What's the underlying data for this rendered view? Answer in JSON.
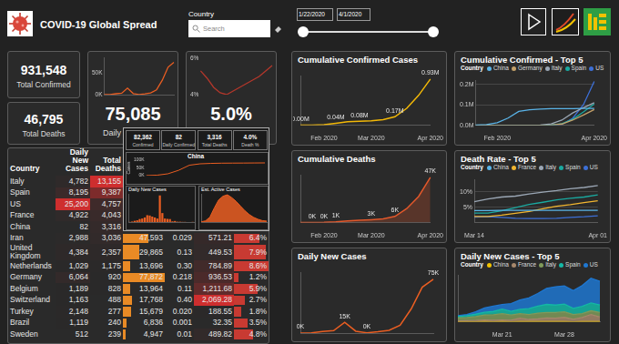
{
  "header": {
    "title": "COVID-19 Global Spread",
    "slicer_label": "Country",
    "search_placeholder": "Search",
    "date_from": "1/22/2020",
    "date_to": "4/1/2020"
  },
  "cards": [
    {
      "value": "931,548",
      "label": "Total Confirmed"
    },
    {
      "value": "46,795",
      "label": "Total Deaths"
    },
    {
      "value": "75,085",
      "label": "Daily"
    },
    {
      "value": "5.0%"
    }
  ],
  "tooltip": {
    "stats": [
      {
        "value": "82,362",
        "label": "Confirmed"
      },
      {
        "value": "82",
        "label": "Daily Confirmed"
      },
      {
        "value": "3,316",
        "label": "Total Deaths"
      },
      {
        "value": "4.0%",
        "label": "Death %"
      }
    ]
  },
  "table": {
    "header": [
      "Country",
      "Daily New Cases",
      "Total Deaths"
    ],
    "rows": [
      [
        "Italy",
        "4,782",
        "13,155"
      ],
      [
        "Spain",
        "8,195",
        "9,387"
      ],
      [
        "US",
        "25,200",
        "4,757"
      ],
      [
        "France",
        "4,922",
        "4,043"
      ],
      [
        "China",
        "82",
        "3,316"
      ],
      [
        "Iran",
        "2,988",
        "3,036",
        "47,593",
        "0.029",
        "571.21",
        "6.4%"
      ],
      [
        "United Kingdom",
        "4,384",
        "2,357",
        "29,865",
        "0.13",
        "449.53",
        "7.9%"
      ],
      [
        "Netherlands",
        "1,029",
        "1,175",
        "13,696",
        "0.30",
        "784.89",
        "8.6%"
      ],
      [
        "Germany",
        "6,064",
        "920",
        "77,872",
        "0.218",
        "936.53",
        "1.2%"
      ],
      [
        "Belgium",
        "1,189",
        "828",
        "13,964",
        "0.11",
        "1,211.68",
        "5.9%"
      ],
      [
        "Switzerland",
        "1,163",
        "488",
        "17,768",
        "0.40",
        "2,069.28",
        "2.7%"
      ],
      [
        "Turkey",
        "2,148",
        "277",
        "15,679",
        "0.020",
        "188.55",
        "1.8%"
      ],
      [
        "Brazil",
        "1,119",
        "240",
        "6,836",
        "0.001",
        "32.35",
        "3.5%"
      ],
      [
        "Sweden",
        "512",
        "239",
        "4,947",
        "0.01",
        "489.82",
        "4.8%"
      ]
    ]
  },
  "chart_data": [
    {
      "type": "line",
      "color": "#ea5e22",
      "categories": [
        null,
        null,
        null,
        null,
        null,
        null,
        null,
        null,
        null,
        null,
        null,
        null,
        null
      ],
      "values": [
        0.0,
        0.4,
        2.1,
        3.4,
        15.1,
        2.6,
        0.4,
        1.8,
        3.9,
        10.9,
        33.6,
        64.0,
        75.1
      ],
      "ylim": [
        0,
        85
      ],
      "yticks": [
        {
          "value": 0,
          "label": "0K"
        },
        {
          "value": 50,
          "label": "50K"
        }
      ],
      "tick_labels": "y",
      "grid": false
    },
    {
      "type": "line",
      "color": "#b3372b",
      "categories": [
        null,
        null,
        null,
        null,
        null,
        null,
        null,
        null,
        null,
        null,
        null,
        null
      ],
      "values": [
        5.3,
        4.9,
        4.4,
        4.1,
        4.0,
        4.2,
        4.4,
        4.6,
        4.8,
        5.0,
        5.3,
        5.6
      ],
      "ylim": [
        4,
        6
      ],
      "yticks": [
        {
          "value": 4,
          "label": "4%"
        },
        {
          "value": 6,
          "label": "6%"
        }
      ],
      "tick_labels": "y",
      "grid": false
    },
    {
      "type": "line",
      "title": "China",
      "y_label": "Cases",
      "color": "#ea5e22",
      "categories": [
        null,
        null,
        null,
        null,
        null,
        null,
        null,
        null,
        null,
        null,
        null,
        null
      ],
      "values": [
        0.5,
        2.9,
        11.8,
        34.5,
        67.5,
        76.4,
        79.2,
        80.6,
        81.0,
        81.4,
        81.9,
        82.4
      ],
      "ylim": [
        0,
        100
      ],
      "yticks": [
        {
          "value": 0,
          "label": "0K"
        },
        {
          "value": 50,
          "label": "50K"
        },
        {
          "value": 100,
          "label": "100K"
        }
      ],
      "tick_labels": "y",
      "grid": false
    },
    {
      "type": "bar",
      "title": "Daily New Cases",
      "color": "#ea5e22",
      "categories": [
        null,
        null,
        null,
        null,
        null,
        null,
        null,
        null,
        null,
        null,
        null,
        null,
        null,
        null,
        null,
        null,
        null,
        null,
        null,
        null,
        null,
        null,
        null,
        null,
        null,
        null
      ],
      "values": [
        0.1,
        0.3,
        0.7,
        1.0,
        1.7,
        2.0,
        2.6,
        3.9,
        3.7,
        3.1,
        2.6,
        2.0,
        15.1,
        5.1,
        2.0,
        1.8,
        1.7,
        0.4,
        0.6,
        0.2,
        0.2,
        0.1,
        0.1,
        0.0,
        0.0,
        0.1
      ],
      "ylim": [
        0,
        16
      ],
      "tick_labels": false,
      "grid": false
    },
    {
      "type": "area",
      "title": "Est. Active Cases",
      "color": "#ea5e22",
      "categories": [
        null,
        null,
        null,
        null,
        null,
        null,
        null,
        null,
        null,
        null,
        null,
        null,
        null,
        null,
        null,
        null
      ],
      "values": [
        0.5,
        2.6,
        10.5,
        29.8,
        47.0,
        55.0,
        58.0,
        52.0,
        44.0,
        34.0,
        24.0,
        16.0,
        10.0,
        6.0,
        3.0,
        2.0
      ],
      "ylim": [
        0,
        60
      ],
      "tick_labels": false,
      "grid": false
    },
    {
      "type": "line",
      "title": "Cumulative Confirmed Cases",
      "color": "#f2b807",
      "categories": [
        null,
        null,
        "Feb 2020",
        null,
        null,
        null,
        "Mar 2020",
        null,
        null,
        null,
        null,
        "Apr 2020"
      ],
      "values": [
        0.0006,
        0.003,
        0.012,
        0.04,
        0.069,
        0.08,
        0.088,
        0.11,
        0.17,
        0.34,
        0.6,
        0.93
      ],
      "value_labels": [
        "0.00M",
        null,
        null,
        "0.04M",
        null,
        "0.08M",
        null,
        null,
        "0.17M",
        null,
        null,
        "0.93M"
      ],
      "data_labels": true,
      "ylim": [
        0,
        1
      ],
      "tick_labels": "x",
      "grid": false
    },
    {
      "type": "line",
      "title": "Cumulative Confirmed - Top 5",
      "legend_title": "Country",
      "legend": "top",
      "categories": [
        null,
        null,
        "Feb 2020",
        null,
        null,
        null,
        null,
        null,
        null,
        null,
        null,
        "Apr 2020"
      ],
      "series": [
        {
          "name": "China",
          "color": "#5ab4e8",
          "values": [
            0.001,
            0.003,
            0.012,
            0.035,
            0.068,
            0.076,
            0.079,
            0.081,
            0.081,
            0.081,
            0.082,
            0.082
          ]
        },
        {
          "name": "Germany",
          "color": "#c4a16a",
          "values": [
            0,
            0,
            0,
            0,
            0,
            0,
            0,
            0.001,
            0.006,
            0.025,
            0.05,
            0.077
          ]
        },
        {
          "name": "Italy",
          "color": "#9ba7b5",
          "values": [
            0,
            0,
            0,
            0,
            0,
            0,
            0.001,
            0.007,
            0.025,
            0.06,
            0.086,
            0.11
          ]
        },
        {
          "name": "Spain",
          "color": "#1aa9a0",
          "values": [
            0,
            0,
            0,
            0,
            0,
            0,
            0,
            0.001,
            0.008,
            0.029,
            0.065,
            0.104
          ]
        },
        {
          "name": "US",
          "color": "#3d6fd6",
          "values": [
            0,
            0,
            0,
            0,
            0,
            0,
            0,
            0.001,
            0.004,
            0.034,
            0.101,
            0.214
          ]
        }
      ],
      "ylim": [
        0,
        0.22
      ],
      "yticks": [
        {
          "value": 0,
          "label": "0.0M"
        },
        {
          "value": 0.1,
          "label": "0.1M"
        },
        {
          "value": 0.2,
          "label": "0.2M"
        }
      ],
      "grid": true
    },
    {
      "type": "area",
      "title": "Cumulative Deaths",
      "color": "#e2582b",
      "categories": [
        null,
        null,
        "Feb 2020",
        null,
        null,
        null,
        "Mar 2020",
        null,
        null,
        null,
        null,
        "Apr 2020"
      ],
      "values": [
        0.02,
        0.08,
        0.26,
        0.81,
        1.67,
        2.46,
        3.0,
        3.81,
        6.44,
        14.6,
        27.2,
        47.2
      ],
      "value_labels": [
        null,
        "0K",
        "0K",
        "1K",
        null,
        null,
        "3K",
        null,
        "6K",
        null,
        null,
        "47K"
      ],
      "data_labels": true,
      "ylim": [
        0,
        50
      ],
      "tick_labels": "x",
      "grid": false
    },
    {
      "type": "line",
      "title": "Death Rate - Top 5",
      "legend_title": "Country",
      "legend": "top",
      "categories": [
        "Mar 14",
        null,
        null,
        null,
        null,
        null,
        null,
        null,
        null,
        "Apr 01"
      ],
      "series": [
        {
          "name": "China",
          "color": "#5ab4e8",
          "values": [
            3.9,
            3.9,
            4.0,
            4.0,
            4.0,
            4.0,
            4.0,
            4.0,
            4.0,
            4.0
          ]
        },
        {
          "name": "France",
          "color": "#f2b630",
          "values": [
            2.0,
            2.0,
            2.4,
            3.0,
            3.6,
            4.5,
            5.3,
            5.8,
            6.5,
            7.1
          ]
        },
        {
          "name": "Italy",
          "color": "#9ba7b5",
          "values": [
            6.8,
            7.7,
            8.3,
            8.6,
            9.3,
            9.9,
            10.4,
            11.0,
            11.4,
            12.0
          ]
        },
        {
          "name": "Spain",
          "color": "#1aa9a0",
          "values": [
            3.1,
            3.1,
            3.8,
            4.9,
            5.9,
            6.6,
            7.4,
            7.9,
            8.3,
            9.0
          ]
        },
        {
          "name": "US",
          "color": "#3d6fd6",
          "values": [
            1.8,
            1.9,
            1.7,
            1.4,
            1.3,
            1.3,
            1.4,
            1.7,
            1.9,
            2.2
          ]
        }
      ],
      "ylim": [
        0,
        14
      ],
      "yticks": [
        {
          "value": 5,
          "label": "5%"
        },
        {
          "value": 10,
          "label": "10%"
        }
      ],
      "grid": true
    },
    {
      "type": "line",
      "title": "Daily New Cases",
      "color": "#ea5e22",
      "categories": [
        null,
        null,
        null,
        null,
        null,
        null,
        null,
        null,
        null,
        null,
        null,
        null,
        null
      ],
      "values": [
        0.0,
        0.4,
        2.1,
        3.4,
        15.1,
        2.6,
        0.4,
        1.8,
        3.9,
        10.9,
        33.6,
        64.0,
        75.1
      ],
      "value_labels": [
        "0K",
        null,
        null,
        null,
        "15K",
        null,
        "0K",
        null,
        null,
        null,
        null,
        null,
        "75K"
      ],
      "data_labels": true,
      "ylim": [
        0,
        85
      ],
      "tick_labels": false,
      "grid": false
    },
    {
      "type": "area",
      "title": "Daily New Cases - Top 5",
      "legend_title": "Country",
      "legend": "top",
      "stacked": true,
      "categories": [
        null,
        null,
        null,
        null,
        null,
        "Mar 21",
        null,
        null,
        null,
        null,
        null,
        null,
        "Mar 28",
        null,
        null,
        null,
        null
      ],
      "series": [
        {
          "name": "China",
          "color": "#f2c200",
          "values": [
            0.0,
            0.0,
            0.0,
            0.1,
            0.0,
            0.1,
            0.0,
            0.1,
            0.1,
            0.1,
            0.1,
            0.1,
            0.1,
            0.0,
            0.1,
            0.1,
            0.1
          ]
        },
        {
          "name": "France",
          "color": "#a6876b",
          "values": [
            1.0,
            1.1,
            1.4,
            1.9,
            1.6,
            1.9,
            1.6,
            3.8,
            2.4,
            2.9,
            3.9,
            3.8,
            4.6,
            2.6,
            4.4,
            7.6,
            4.9
          ]
        },
        {
          "name": "Italy",
          "color": "#7f9a5a",
          "values": [
            3.2,
            3.5,
            4.2,
            5.3,
            5.9,
            6.6,
            5.6,
            4.8,
            5.2,
            6.2,
            5.9,
            6.0,
            5.9,
            5.2,
            4.1,
            4.0,
            4.8
          ]
        },
        {
          "name": "Spain",
          "color": "#14b8a6",
          "values": [
            1.4,
            1.9,
            2.5,
            2.8,
            3.5,
            4.9,
            3.9,
            4.5,
            6.4,
            7.5,
            8.6,
            7.9,
            8.2,
            6.5,
            7.8,
            8.3,
            8.2
          ]
        },
        {
          "name": "US",
          "color": "#1f77d0",
          "values": [
            1.0,
            1.3,
            2.6,
            4.7,
            5.6,
            4.8,
            8.2,
            10.1,
            11.3,
            13.4,
            17.1,
            19.5,
            19.4,
            18.9,
            22.1,
            26.4,
            25.2
          ]
        }
      ],
      "ylim": [
        0,
        50
      ],
      "tick_labels": "x",
      "grid": false
    }
  ]
}
